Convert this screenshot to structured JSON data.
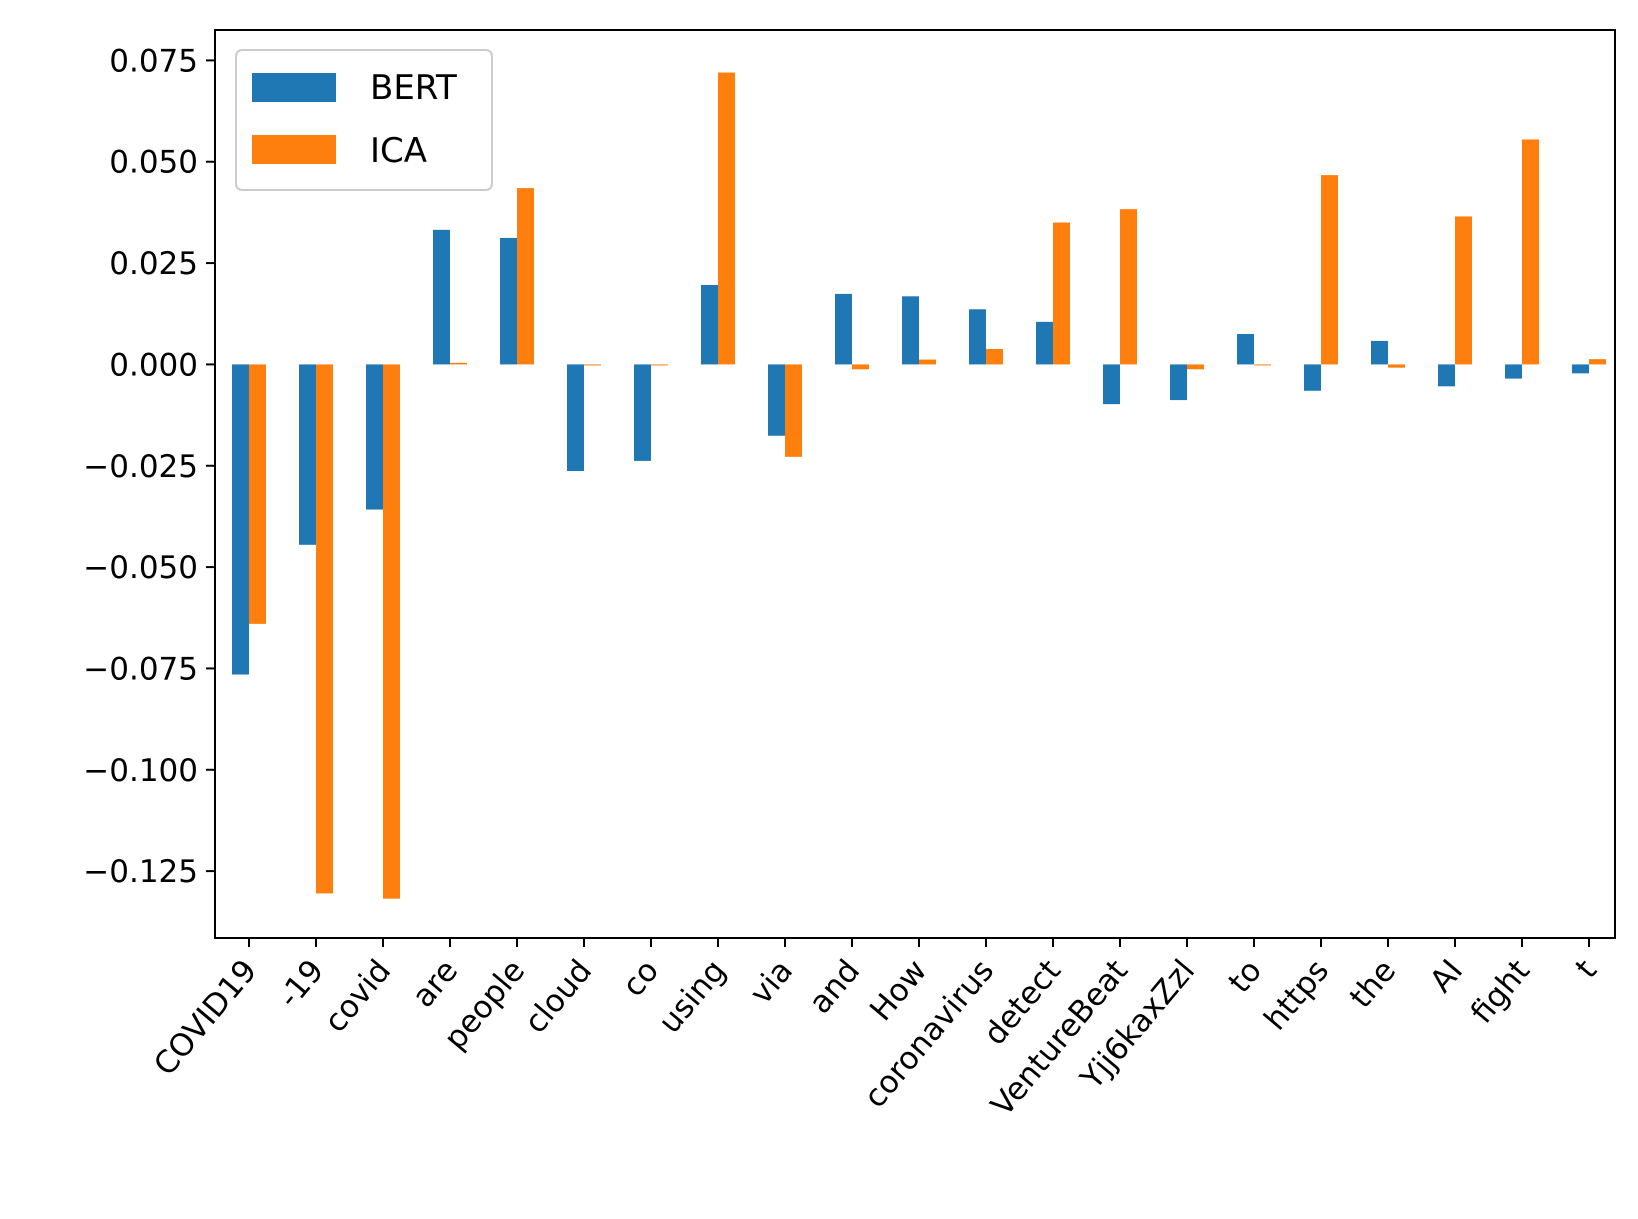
{
  "chart_data": {
    "type": "bar",
    "categories": [
      "COVID19",
      "-19",
      "covid",
      "are",
      "people",
      "cloud",
      "co",
      "using",
      "via",
      "and",
      "How",
      "coronavirus",
      "detect",
      "VentureBeat",
      "Yjj6kaxZzl",
      "to",
      "https",
      "the",
      "AI",
      "fight",
      "t"
    ],
    "series": [
      {
        "name": "BERT",
        "color": "#1f77b4",
        "values": [
          -0.0765,
          -0.0445,
          -0.0358,
          0.0332,
          0.0312,
          -0.0263,
          -0.0238,
          0.0196,
          -0.0176,
          0.0174,
          0.0168,
          0.0136,
          0.0105,
          -0.0098,
          -0.0088,
          0.0075,
          -0.0065,
          0.0058,
          -0.0054,
          -0.0035,
          -0.0022
        ]
      },
      {
        "name": "ICA",
        "color": "#ff7f0e",
        "values": [
          -0.064,
          -0.1305,
          -0.1318,
          0.0004,
          0.0435,
          -0.0002,
          -0.0002,
          0.072,
          -0.0228,
          -0.0012,
          0.0012,
          0.0038,
          0.035,
          0.0383,
          -0.0012,
          -0.0002,
          0.0467,
          -0.0008,
          0.0365,
          0.0555,
          0.0013
        ]
      }
    ],
    "yticks": [
      "0.075",
      "0.050",
      "0.025",
      "0.000",
      "−0.025",
      "−0.050",
      "−0.075",
      "−0.100",
      "−0.125"
    ],
    "ylim": [
      -0.1415,
      0.0825
    ],
    "title": "",
    "xlabel": "",
    "ylabel": "",
    "legend": "top-left",
    "grid": false
  }
}
